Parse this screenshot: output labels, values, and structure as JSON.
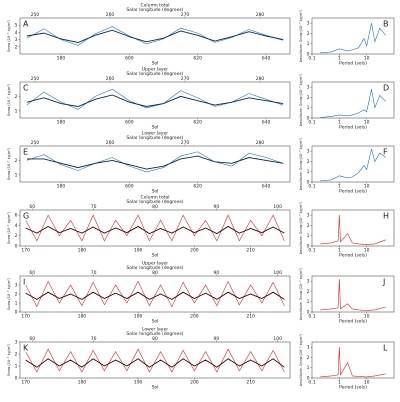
{
  "chart_data": [
    {
      "type": "line",
      "panel": "A",
      "title": "Column total",
      "top_label": "Solar longitude (degrees)",
      "xlabel": "Sol",
      "ylabel": "Snow (10⁻³ kg/m²)",
      "x": [
        570,
        575,
        580,
        585,
        590,
        595,
        600,
        605,
        610,
        615,
        620,
        625,
        630,
        635,
        640,
        645
      ],
      "series": [
        {
          "color": "#1f77b4",
          "values": [
            3.2,
            4.5,
            3.0,
            2.2,
            3.8,
            4.8,
            3.5,
            2.4,
            3.1,
            4.6,
            3.9,
            2.6,
            3.3,
            4.4,
            3.6,
            2.9
          ]
        },
        {
          "color": "#0b2a4a",
          "values": [
            3.5,
            3.9,
            3.1,
            2.6,
            3.6,
            4.3,
            3.4,
            2.7,
            3.2,
            4.2,
            3.6,
            2.8,
            3.4,
            4.1,
            3.5,
            3.0
          ]
        }
      ],
      "xlim": [
        568,
        647
      ],
      "xticks": [
        580,
        600,
        620,
        640
      ],
      "ylim": [
        1,
        6
      ],
      "yticks": [
        2,
        3,
        4,
        5
      ],
      "x2lim": [
        248,
        284
      ],
      "x2ticks": [
        250,
        260,
        270,
        280
      ]
    },
    {
      "type": "line",
      "panel": "B",
      "xlabel": "Period (sols)",
      "ylabel": "Amplitude, Snow (10⁻³ kg/m²)",
      "xscale": "log",
      "x": [
        0.2,
        0.5,
        1,
        2,
        3,
        5,
        8,
        10,
        15,
        20,
        30,
        50
      ],
      "series": [
        {
          "color": "#1f77b4",
          "values": [
            0.1,
            0.2,
            0.5,
            0.3,
            0.4,
            0.6,
            1.5,
            0.8,
            3.0,
            1.2,
            2.5,
            1.8
          ]
        }
      ],
      "xlim": [
        0.1,
        100
      ],
      "xticks": [
        0.1,
        1,
        10
      ],
      "ylim": [
        0,
        3.5
      ],
      "yticks": [
        0,
        1,
        2,
        3
      ]
    },
    {
      "type": "line",
      "panel": "C",
      "title": "Upper layer",
      "top_label": "Solar longitude (degrees)",
      "xlabel": "Sol",
      "ylabel": "Snow (10⁻³ kg/m²)",
      "x": [
        570,
        575,
        580,
        585,
        590,
        595,
        600,
        605,
        610,
        615,
        620,
        625,
        630,
        635,
        640,
        645
      ],
      "series": [
        {
          "color": "#1f77b4",
          "values": [
            1.4,
            2.3,
            1.6,
            1.1,
            2.0,
            2.5,
            1.7,
            1.2,
            1.5,
            2.4,
            1.9,
            1.3,
            1.6,
            2.2,
            1.8,
            1.4
          ]
        },
        {
          "color": "#0b2a4a",
          "values": [
            1.6,
            1.9,
            1.5,
            1.3,
            1.8,
            2.1,
            1.6,
            1.3,
            1.5,
            2.0,
            1.7,
            1.4,
            1.6,
            1.9,
            1.7,
            1.5
          ]
        }
      ],
      "xlim": [
        568,
        647
      ],
      "xticks": [
        580,
        600,
        620,
        640
      ],
      "ylim": [
        0.5,
        3
      ],
      "yticks": [
        1,
        2
      ],
      "x2lim": [
        248,
        284
      ],
      "x2ticks": [
        250,
        260,
        270,
        280
      ]
    },
    {
      "type": "line",
      "panel": "D",
      "xlabel": "Period (sols)",
      "ylabel": "Amplitude, Snow (10⁻³ kg/m²)",
      "xscale": "log",
      "x": [
        0.2,
        0.5,
        1,
        2,
        3,
        5,
        8,
        10,
        15,
        20,
        30,
        50
      ],
      "series": [
        {
          "color": "#1f77b4",
          "values": [
            0.05,
            0.15,
            0.3,
            0.2,
            0.3,
            0.5,
            0.8,
            0.6,
            2.8,
            1.0,
            2.2,
            1.6
          ]
        }
      ],
      "xlim": [
        0.1,
        100
      ],
      "xticks": [
        0.1,
        1,
        10
      ],
      "ylim": [
        0,
        3.5
      ],
      "yticks": [
        0,
        1,
        2,
        3
      ]
    },
    {
      "type": "line",
      "panel": "E",
      "title": "Lower layer",
      "top_label": "Solar longitude (degrees)",
      "xlabel": "Sol",
      "ylabel": "Snow (10⁻³ kg/m²)",
      "x": [
        570,
        575,
        580,
        585,
        590,
        595,
        600,
        605,
        610,
        615,
        620,
        625,
        630,
        635,
        640,
        645
      ],
      "series": [
        {
          "color": "#1f77b4",
          "values": [
            2.0,
            2.4,
            1.7,
            1.3,
            1.8,
            2.2,
            1.6,
            1.2,
            1.5,
            2.3,
            2.6,
            1.9,
            1.6,
            2.5,
            2.2,
            1.8
          ]
        },
        {
          "color": "#0b2a4a",
          "values": [
            2.1,
            2.1,
            1.8,
            1.5,
            1.8,
            2.0,
            1.7,
            1.4,
            1.6,
            2.1,
            2.3,
            1.9,
            1.8,
            2.2,
            2.0,
            1.8
          ]
        }
      ],
      "xlim": [
        568,
        647
      ],
      "xticks": [
        580,
        600,
        620,
        640
      ],
      "ylim": [
        0.5,
        3
      ],
      "yticks": [
        1,
        2
      ],
      "x2lim": [
        248,
        284
      ],
      "x2ticks": [
        250,
        260,
        270,
        280
      ]
    },
    {
      "type": "line",
      "panel": "F",
      "xlabel": "Period (sols)",
      "ylabel": "Amplitude, Snow (10⁻³ kg/m²)",
      "xscale": "log",
      "x": [
        0.2,
        0.5,
        1,
        2,
        3,
        5,
        8,
        10,
        15,
        20,
        30,
        50
      ],
      "series": [
        {
          "color": "#1f77b4",
          "values": [
            0.1,
            0.2,
            0.6,
            0.4,
            0.5,
            0.9,
            1.6,
            1.2,
            3.2,
            2.0,
            2.8,
            2.4
          ]
        }
      ],
      "xlim": [
        0.1,
        100
      ],
      "xticks": [
        0.1,
        1,
        10
      ],
      "ylim": [
        0,
        3.5
      ],
      "yticks": [
        0,
        1,
        2,
        3
      ]
    },
    {
      "type": "line",
      "panel": "G",
      "title": "Column total",
      "top_label": "Solar longitude (degrees)",
      "xlabel": "Sol",
      "ylabel": "Snow (10⁻³ kg/m²)",
      "x": [
        170,
        172,
        174,
        176,
        178,
        180,
        182,
        184,
        186,
        188,
        190,
        192,
        194,
        196,
        198,
        200,
        202,
        204,
        206,
        208,
        210,
        212,
        214,
        216
      ],
      "series": [
        {
          "color": "#d62728",
          "values": [
            5,
            1,
            6,
            2,
            5,
            1,
            6,
            1,
            5,
            2,
            6,
            1,
            5,
            1,
            6,
            2,
            5,
            1,
            6,
            1,
            5,
            2,
            6,
            1
          ]
        },
        {
          "color": "#3a0000",
          "values": [
            3.5,
            2.5,
            3.8,
            2.6,
            3.4,
            2.5,
            3.7,
            2.5,
            3.5,
            2.6,
            3.8,
            2.4,
            3.4,
            2.5,
            3.7,
            2.6,
            3.5,
            2.4,
            3.8,
            2.5,
            3.4,
            2.6,
            3.7,
            2.5
          ]
        }
      ],
      "xlim": [
        169,
        217
      ],
      "xticks": [
        170,
        180,
        190,
        200,
        210
      ],
      "ylim": [
        0,
        7
      ],
      "yticks": [
        0,
        2,
        4,
        6
      ],
      "x2lim": [
        58,
        102
      ],
      "x2ticks": [
        60,
        70,
        80,
        90,
        100
      ]
    },
    {
      "type": "line",
      "panel": "H",
      "xlabel": "Period (sols)",
      "ylabel": "Amplitude, Snow (10⁻³ kg/m²)",
      "xscale": "log",
      "x": [
        0.2,
        0.5,
        0.9,
        1,
        1.1,
        2,
        3,
        5,
        10,
        20,
        50
      ],
      "series": [
        {
          "color": "#d62728",
          "values": [
            0.2,
            0.3,
            0.5,
            3.0,
            0.4,
            1.2,
            0.3,
            0.2,
            0.15,
            0.2,
            0.6
          ]
        }
      ],
      "xlim": [
        0.1,
        100
      ],
      "xticks": [
        0.1,
        1,
        10
      ],
      "ylim": [
        0,
        3.5
      ],
      "yticks": [
        0,
        1,
        2,
        3
      ]
    },
    {
      "type": "line",
      "panel": "I",
      "title": "Upper layer",
      "top_label": "Solar longitude (degrees)",
      "xlabel": "Sol",
      "ylabel": "Snow (10⁻³ kg/m²)",
      "x": [
        170,
        172,
        174,
        176,
        178,
        180,
        182,
        184,
        186,
        188,
        190,
        192,
        194,
        196,
        198,
        200,
        202,
        204,
        206,
        208,
        210,
        212,
        214,
        216
      ],
      "series": [
        {
          "color": "#d62728",
          "values": [
            3,
            0.6,
            3.4,
            1,
            3,
            0.7,
            3.3,
            0.8,
            3,
            1,
            3.4,
            0.7,
            3,
            0.6,
            3.3,
            1,
            3,
            0.7,
            3.4,
            0.8,
            3,
            1,
            3.3,
            0.7
          ]
        },
        {
          "color": "#3a0000",
          "values": [
            2.1,
            1.4,
            2.2,
            1.5,
            2.0,
            1.4,
            2.2,
            1.5,
            2.1,
            1.5,
            2.2,
            1.4,
            2.0,
            1.4,
            2.2,
            1.5,
            2.1,
            1.4,
            2.2,
            1.5,
            2.0,
            1.5,
            2.2,
            1.4
          ]
        }
      ],
      "xlim": [
        169,
        217
      ],
      "xticks": [
        170,
        180,
        190,
        200,
        210
      ],
      "ylim": [
        0,
        4
      ],
      "yticks": [
        0,
        1,
        2,
        3
      ],
      "x2lim": [
        58,
        102
      ],
      "x2ticks": [
        60,
        70,
        80,
        90,
        100
      ]
    },
    {
      "type": "line",
      "panel": "J",
      "xlabel": "Period (sols)",
      "ylabel": "Amplitude, Snow (10⁻³ kg/m²)",
      "xscale": "log",
      "x": [
        0.2,
        0.5,
        0.9,
        1,
        1.1,
        2,
        3,
        5,
        10,
        20,
        50
      ],
      "series": [
        {
          "color": "#d62728",
          "values": [
            0.2,
            0.3,
            0.4,
            3.2,
            0.3,
            0.8,
            0.3,
            0.2,
            0.15,
            0.2,
            0.5
          ]
        }
      ],
      "xlim": [
        0.1,
        100
      ],
      "xticks": [
        0.1,
        1,
        10
      ],
      "ylim": [
        0,
        3.5
      ],
      "yticks": [
        0,
        1,
        2,
        3
      ]
    },
    {
      "type": "line",
      "panel": "K",
      "title": "Lower layer",
      "top_label": "Solar longitude (degrees)",
      "xlabel": "Sol",
      "ylabel": "Snow (10⁻³ kg/m²)",
      "x": [
        170,
        172,
        174,
        176,
        178,
        180,
        182,
        184,
        186,
        188,
        190,
        192,
        194,
        196,
        198,
        200,
        202,
        204,
        206,
        208,
        210,
        212,
        214,
        216
      ],
      "series": [
        {
          "color": "#d62728",
          "values": [
            2.2,
            0.5,
            2.4,
            0.6,
            2.2,
            0.5,
            2.3,
            0.6,
            2.2,
            0.6,
            2.4,
            0.5,
            2.2,
            0.5,
            2.3,
            0.6,
            2.2,
            0.5,
            2.4,
            0.6,
            2.2,
            0.6,
            2.3,
            0.5
          ]
        },
        {
          "color": "#3a0000",
          "values": [
            1.5,
            0.9,
            1.6,
            1.0,
            1.5,
            0.9,
            1.6,
            1.0,
            1.5,
            1.0,
            1.6,
            0.9,
            1.5,
            0.9,
            1.6,
            1.0,
            1.5,
            0.9,
            1.6,
            1.0,
            1.5,
            1.0,
            1.6,
            0.9
          ]
        }
      ],
      "xlim": [
        169,
        217
      ],
      "xticks": [
        170,
        180,
        190,
        200,
        210
      ],
      "ylim": [
        0,
        3
      ],
      "yticks": [
        0,
        1,
        2,
        3
      ],
      "x2lim": [
        58,
        102
      ],
      "x2ticks": [
        60,
        70,
        80,
        90,
        100
      ]
    },
    {
      "type": "line",
      "panel": "L",
      "xlabel": "Period (sols)",
      "ylabel": "Amplitude, Snow (10⁻³ kg/m²)",
      "xscale": "log",
      "x": [
        0.2,
        0.5,
        0.9,
        1,
        1.1,
        2,
        3,
        5,
        10,
        20,
        50
      ],
      "series": [
        {
          "color": "#d62728",
          "values": [
            0.1,
            0.2,
            0.3,
            3.0,
            0.3,
            1.5,
            0.2,
            0.15,
            0.1,
            0.2,
            0.4
          ]
        }
      ],
      "xlim": [
        0.1,
        100
      ],
      "xticks": [
        0.1,
        1,
        10
      ],
      "ylim": [
        0,
        3.5
      ],
      "yticks": [
        0,
        1,
        2,
        3
      ]
    }
  ]
}
